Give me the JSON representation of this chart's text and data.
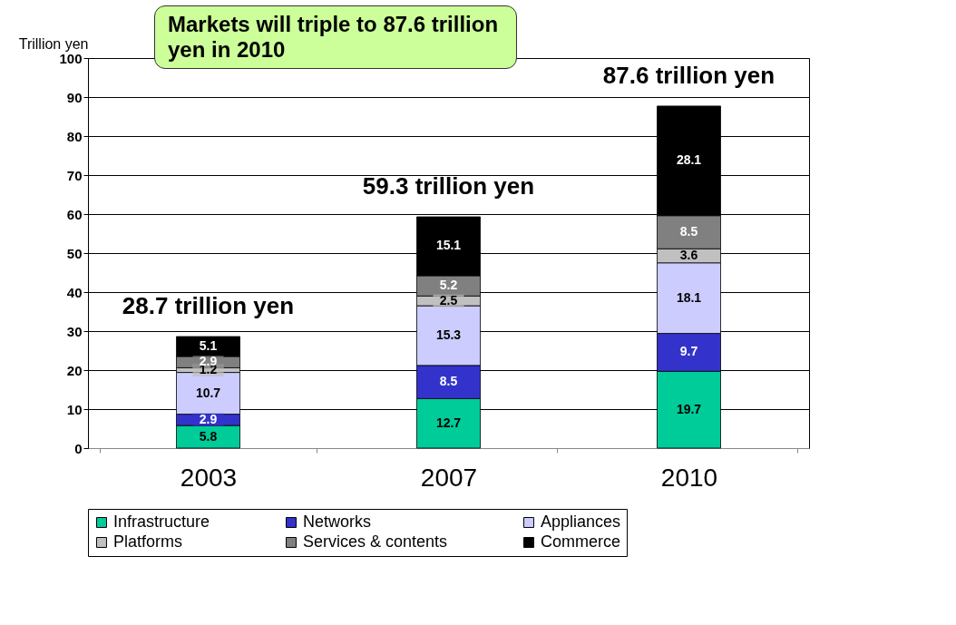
{
  "chart_data": {
    "type": "bar",
    "stacked": true,
    "ylabel": "Trillion yen",
    "categories": [
      "2003",
      "2007",
      "2010"
    ],
    "series": [
      {
        "name": "Infrastructure",
        "color": "#00cc99",
        "values": [
          5.8,
          12.7,
          19.7
        ]
      },
      {
        "name": "Networks",
        "color": "#3333cc",
        "values": [
          2.9,
          8.5,
          9.7
        ]
      },
      {
        "name": "Appliances",
        "color": "#ccccff",
        "values": [
          10.7,
          15.3,
          18.1
        ]
      },
      {
        "name": "Platforms",
        "color": "#c0c0c0",
        "values": [
          1.2,
          2.5,
          3.6
        ]
      },
      {
        "name": "Services & contents",
        "color": "#808080",
        "values": [
          2.9,
          5.2,
          8.5
        ]
      },
      {
        "name": "Commerce",
        "color": "#000000",
        "values": [
          5.1,
          15.1,
          28.1
        ]
      }
    ],
    "ylim": [
      0,
      100
    ],
    "yticks": [
      0,
      10,
      20,
      30,
      40,
      50,
      60,
      70,
      80,
      90,
      100
    ],
    "grid": "y",
    "legend": "bottom",
    "data_labels": true,
    "annotations": [
      "Markets will triple to 87.6 trillion yen in 2010",
      {
        "text": "28.7 trillion yen",
        "x": "2003",
        "y": 28.7
      },
      {
        "text": "59.3 trillion yen",
        "x": "2007",
        "y": 59.3
      },
      {
        "text": "87.6 trillion yen",
        "x": "2010",
        "y": 87.6
      }
    ]
  }
}
